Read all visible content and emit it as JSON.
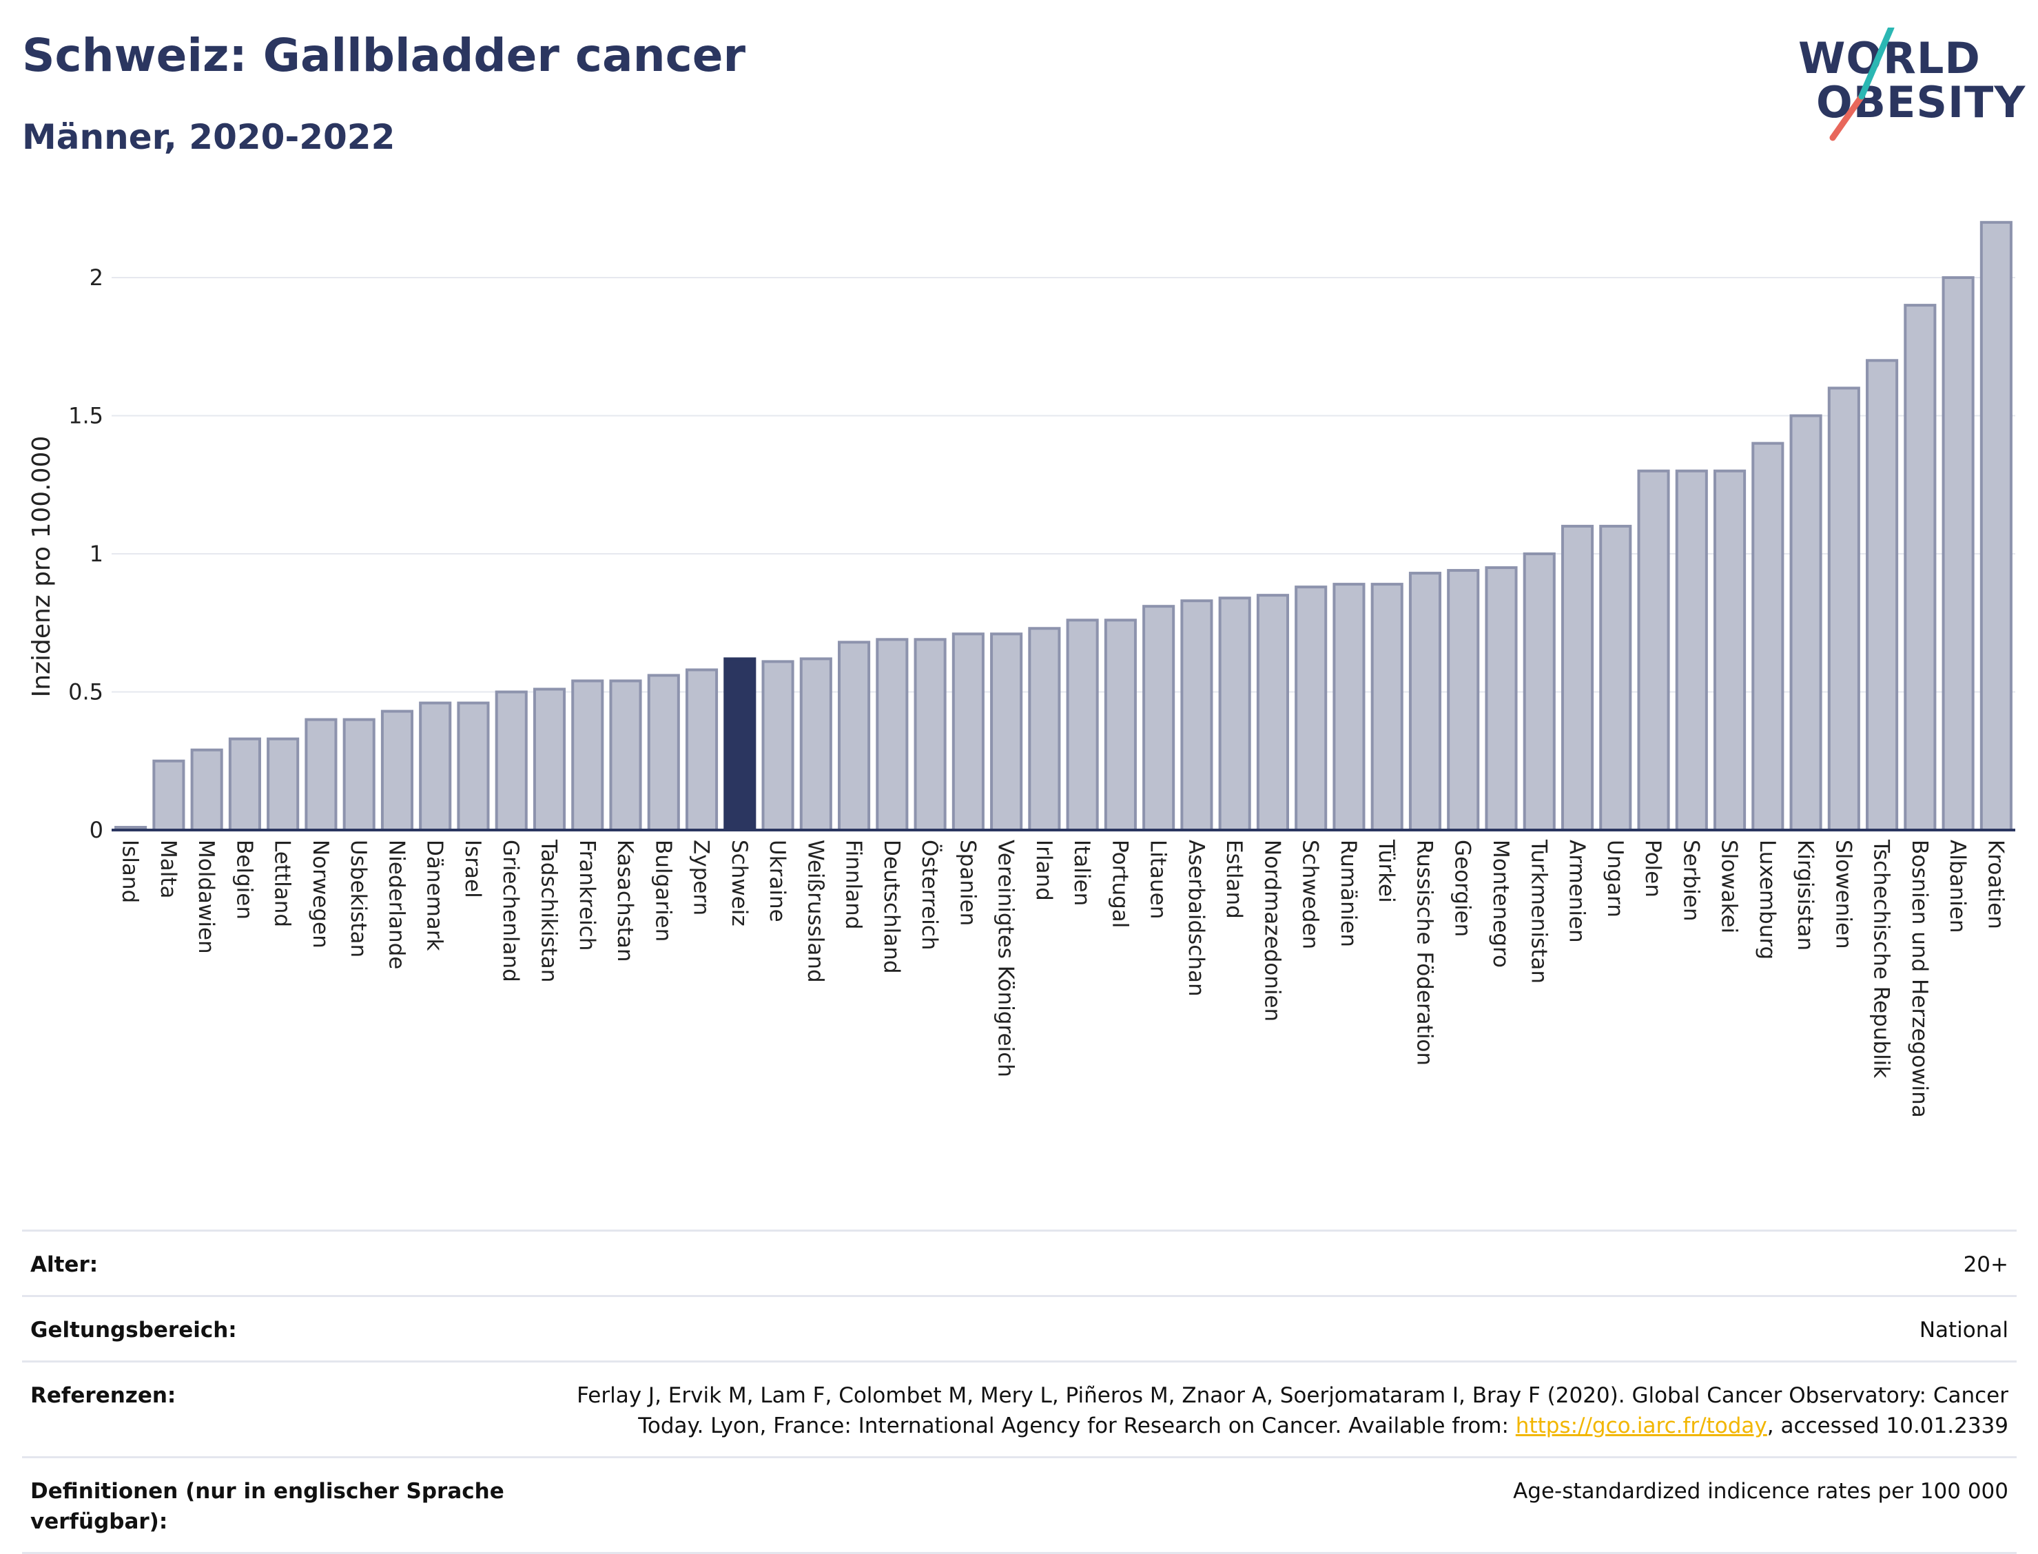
{
  "header": {
    "title": "Schweiz: Gallbladder cancer",
    "subtitle": "Männer, 2020-2022"
  },
  "logo": {
    "line1": "WORLD",
    "line2": "OBESITY"
  },
  "colors": {
    "highlight": "#2b3660",
    "bar": "#bcc0cf",
    "bar_edge": "#8d93ad",
    "accent_teal": "#2bb7b3",
    "accent_red": "#e8675b"
  },
  "chart_data": {
    "type": "bar",
    "ylabel": "Inzidenz pro 100.000",
    "ylim": [
      0,
      2.25
    ],
    "yticks": [
      0,
      0.5,
      1,
      1.5,
      2
    ],
    "ytick_labels": [
      "0",
      "0.5",
      "1",
      "1.5",
      "2"
    ],
    "highlight": "Schweiz",
    "categories": [
      "Island",
      "Malta",
      "Moldawien",
      "Belgien",
      "Lettland",
      "Norwegen",
      "Usbekistan",
      "Niederlande",
      "Dänemark",
      "Israel",
      "Griechenland",
      "Tadschikistan",
      "Frankreich",
      "Kasachstan",
      "Bulgarien",
      "Zypern",
      "Schweiz",
      "Ukraine",
      "Weißrussland",
      "Finnland",
      "Deutschland",
      "Österreich",
      "Spanien",
      "Vereinigtes Königreich",
      "Irland",
      "Italien",
      "Portugal",
      "Litauen",
      "Aserbaidschan",
      "Estland",
      "Nordmazedonien",
      "Schweden",
      "Rumänien",
      "Türkei",
      "Russische Föderation",
      "Georgien",
      "Montenegro",
      "Turkmenistan",
      "Armenien",
      "Ungarn",
      "Polen",
      "Serbien",
      "Slowakei",
      "Luxemburg",
      "Kirgisistan",
      "Slowenien",
      "Tschechische Republik",
      "Bosnien und Herzegowina",
      "Albanien",
      "Kroatien"
    ],
    "values": [
      0.01,
      0.25,
      0.29,
      0.33,
      0.33,
      0.4,
      0.4,
      0.43,
      0.46,
      0.46,
      0.5,
      0.51,
      0.54,
      0.54,
      0.56,
      0.58,
      0.62,
      0.61,
      0.62,
      0.68,
      0.69,
      0.69,
      0.71,
      0.71,
      0.73,
      0.76,
      0.76,
      0.81,
      0.83,
      0.84,
      0.85,
      0.88,
      0.89,
      0.89,
      0.93,
      0.94,
      0.95,
      1.0,
      1.1,
      1.1,
      1.3,
      1.3,
      1.3,
      1.4,
      1.5,
      1.6,
      1.7,
      1.9,
      2.0,
      2.2
    ]
  },
  "info": {
    "rows": [
      {
        "label": "Alter:",
        "value": "20+"
      },
      {
        "label": "Geltungsbereich:",
        "value": "National"
      },
      {
        "label": "Referenzen:",
        "value": "Ferlay J, Ervik M, Lam F, Colombet M, Mery L, Piñeros M, Znaor A, Soerjomataram I, Bray F (2020). Global Cancer Observatory: Cancer Today. Lyon, France: International Agency for Research on Cancer. Available from: ",
        "link": "https://gco.iarc.fr/today",
        "suffix": ", accessed 10.01.2339"
      },
      {
        "label": "Definitionen (nur in englischer Sprache verfügbar):",
        "value": "Age-standardized indicence rates per 100 000"
      }
    ]
  }
}
